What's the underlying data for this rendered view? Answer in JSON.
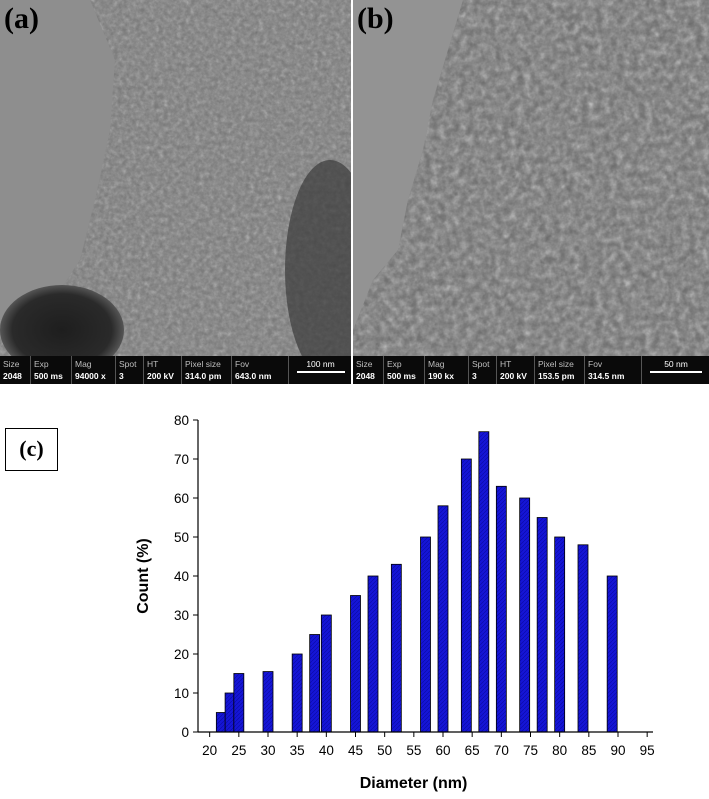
{
  "panels": [
    {
      "letter": "(a)",
      "info": [
        {
          "head": "Size",
          "value": "2048"
        },
        {
          "head": "Exp",
          "value": "500 ms"
        },
        {
          "head": "Mag",
          "value": "94000 x"
        },
        {
          "head": "Spot",
          "value": "3"
        },
        {
          "head": "HT",
          "value": "200 kV"
        },
        {
          "head": "Pixel size",
          "value": "314.0 pm"
        },
        {
          "head": "Fov",
          "value": "643.0 nm"
        }
      ],
      "scale_bar": "100 nm"
    },
    {
      "letter": "(b)",
      "info": [
        {
          "head": "Size",
          "value": "2048"
        },
        {
          "head": "Exp",
          "value": "500 ms"
        },
        {
          "head": "Mag",
          "value": "190 kx"
        },
        {
          "head": "Spot",
          "value": "3"
        },
        {
          "head": "HT",
          "value": "200 kV"
        },
        {
          "head": "Pixel size",
          "value": "153.5 pm"
        },
        {
          "head": "Fov",
          "value": "314.5 nm"
        }
      ],
      "scale_bar": "50 nm"
    }
  ],
  "panel_c_label": "(c)",
  "colors": {
    "bar_fill": "#1515d6",
    "bar_stroke": "#000000"
  },
  "chart_data": {
    "type": "bar",
    "title": "",
    "xlabel": "Diameter (nm)",
    "ylabel": "Count (%)",
    "xlim": [
      18,
      96
    ],
    "ylim": [
      0,
      80
    ],
    "x_ticks": [
      20,
      25,
      30,
      35,
      40,
      45,
      50,
      55,
      60,
      65,
      70,
      75,
      80,
      85,
      90,
      95
    ],
    "y_ticks": [
      0,
      10,
      20,
      30,
      40,
      50,
      60,
      70,
      80
    ],
    "grid": false,
    "legend": "none",
    "x": [
      22,
      23.5,
      25,
      30,
      35,
      38,
      40,
      45,
      48,
      52,
      57,
      60,
      64,
      67,
      70,
      74,
      77,
      80,
      84,
      89
    ],
    "values": [
      5,
      10,
      15,
      15.5,
      20,
      25,
      30,
      35,
      40,
      43,
      50,
      58,
      70,
      77,
      63,
      60,
      55,
      50,
      48,
      40
    ]
  }
}
